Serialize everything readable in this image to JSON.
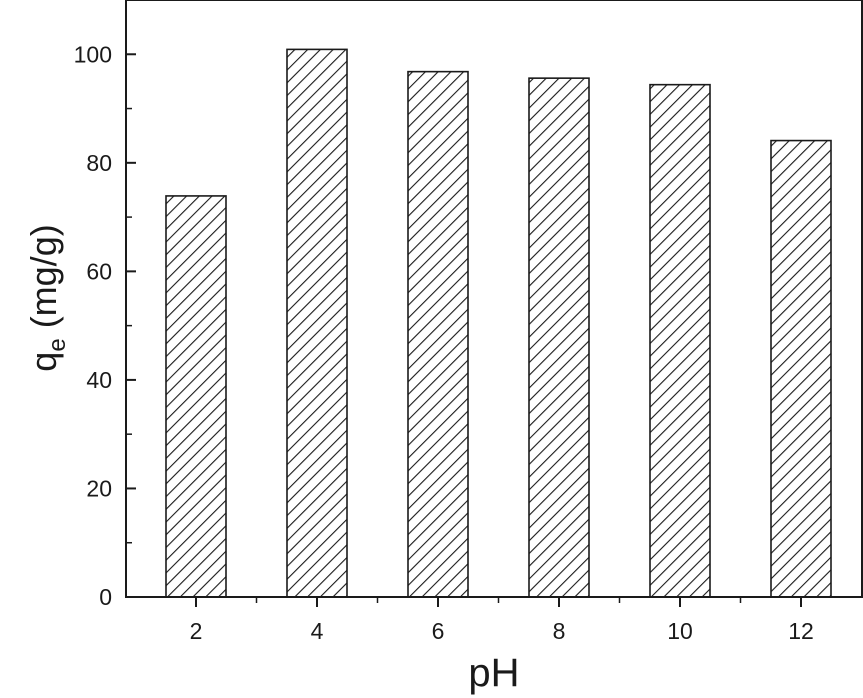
{
  "chart_data": {
    "type": "bar",
    "categories": [
      "2",
      "4",
      "6",
      "8",
      "10",
      "12"
    ],
    "values": [
      73.9,
      100.9,
      96.8,
      95.6,
      94.4,
      84.1
    ],
    "xlabel": "pH",
    "ylabel": {
      "main": "q",
      "sub": "e",
      "unit": " (mg/g)"
    },
    "ylim": [
      0,
      110
    ],
    "yticks": [
      "0",
      "20",
      "40",
      "60",
      "80",
      "100"
    ],
    "grid": false,
    "bar_fill": "diagonal-hatch",
    "colors": {
      "ink": "#1a1a1a",
      "background": "#ffffff"
    }
  }
}
